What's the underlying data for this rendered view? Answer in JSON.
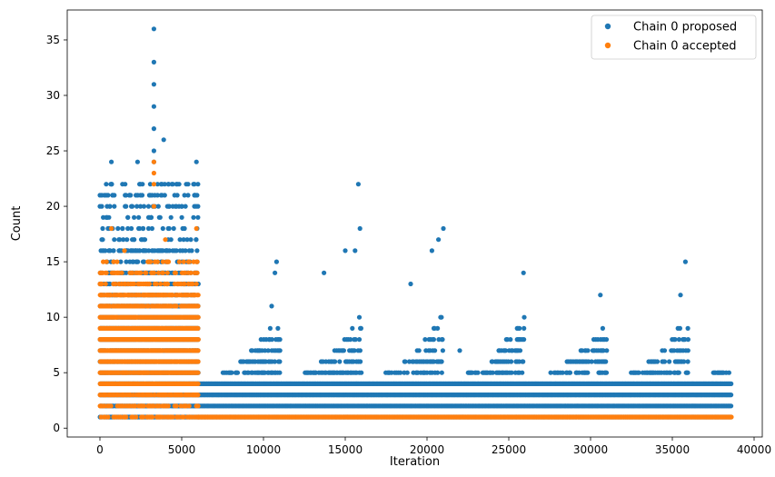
{
  "chart_data": {
    "type": "scatter",
    "title": "",
    "xlabel": "Iteration",
    "ylabel": "Count",
    "xlim": [
      -2000,
      40500
    ],
    "ylim": [
      -0.8,
      37.7
    ],
    "xticks": [
      0,
      5000,
      10000,
      15000,
      20000,
      25000,
      30000,
      35000,
      40000
    ],
    "xtick_labels": [
      "0",
      "5000",
      "10000",
      "15000",
      "20000",
      "25000",
      "30000",
      "35000",
      "40000"
    ],
    "yticks": [
      0,
      5,
      10,
      15,
      20,
      25,
      30,
      35
    ],
    "ytick_labels": [
      "0",
      "5",
      "10",
      "15",
      "20",
      "25",
      "30",
      "35"
    ],
    "grid": false,
    "legend_position": "top-right",
    "series": [
      {
        "name": "Chain 0 proposed",
        "color": "#1f77b4",
        "description": "phase 1 iterations 0-6000 dense band 1-16, sparse outliers up to 36; phase 2 iterations 6000-38600 dense band 1-4 with cyclic spikes",
        "dense_bands": [
          {
            "x_range": [
              0,
              6000
            ],
            "y_values": [
              1,
              2,
              3,
              4,
              5,
              6,
              7,
              8,
              9,
              10,
              11,
              12,
              13,
              14,
              15,
              16
            ]
          },
          {
            "x_range": [
              6000,
              38600
            ],
            "y_values": [
              1,
              2,
              3,
              4
            ]
          }
        ],
        "cycle_period": 5000,
        "outlier_points": [
          [
            3300,
            36
          ],
          [
            3300,
            33
          ],
          [
            3300,
            31
          ],
          [
            3300,
            29
          ],
          [
            3300,
            27
          ],
          [
            3300,
            25
          ],
          [
            3900,
            26
          ],
          [
            700,
            24
          ],
          [
            2300,
            24
          ],
          [
            3300,
            24
          ],
          [
            5900,
            24
          ],
          [
            0,
            20
          ],
          [
            200,
            19
          ],
          [
            1800,
            21
          ],
          [
            2600,
            22
          ],
          [
            4200,
            22
          ],
          [
            5800,
            21
          ],
          [
            15800,
            22
          ],
          [
            15900,
            18
          ],
          [
            15600,
            16
          ],
          [
            15000,
            16
          ],
          [
            21000,
            18
          ],
          [
            20700,
            17
          ],
          [
            20300,
            16
          ],
          [
            10800,
            15
          ],
          [
            10700,
            14
          ],
          [
            25900,
            14
          ],
          [
            35800,
            15
          ],
          [
            10500,
            11
          ],
          [
            30600,
            12
          ],
          [
            35500,
            12
          ],
          [
            13700,
            14
          ],
          [
            19000,
            13
          ],
          [
            22000,
            7
          ]
        ]
      },
      {
        "name": "Chain 0 accepted",
        "color": "#ff7f0e",
        "description": "phase 1 iterations 0-6000 dense band 1-15 with outliers to 24; phase 2 constant at 1",
        "dense_bands": [
          {
            "x_range": [
              0,
              6000
            ],
            "y_values": [
              1,
              2,
              3,
              4,
              5,
              6,
              7,
              8,
              9,
              10,
              11,
              12,
              13,
              14,
              15
            ]
          },
          {
            "x_range": [
              6000,
              38600
            ],
            "y_values": [
              1
            ]
          }
        ],
        "outlier_points": [
          [
            3300,
            24
          ],
          [
            3300,
            23
          ],
          [
            3300,
            22
          ],
          [
            700,
            18
          ],
          [
            5900,
            18
          ],
          [
            3300,
            20
          ],
          [
            4000,
            17
          ],
          [
            1500,
            16
          ],
          [
            200,
            15
          ]
        ]
      }
    ]
  }
}
